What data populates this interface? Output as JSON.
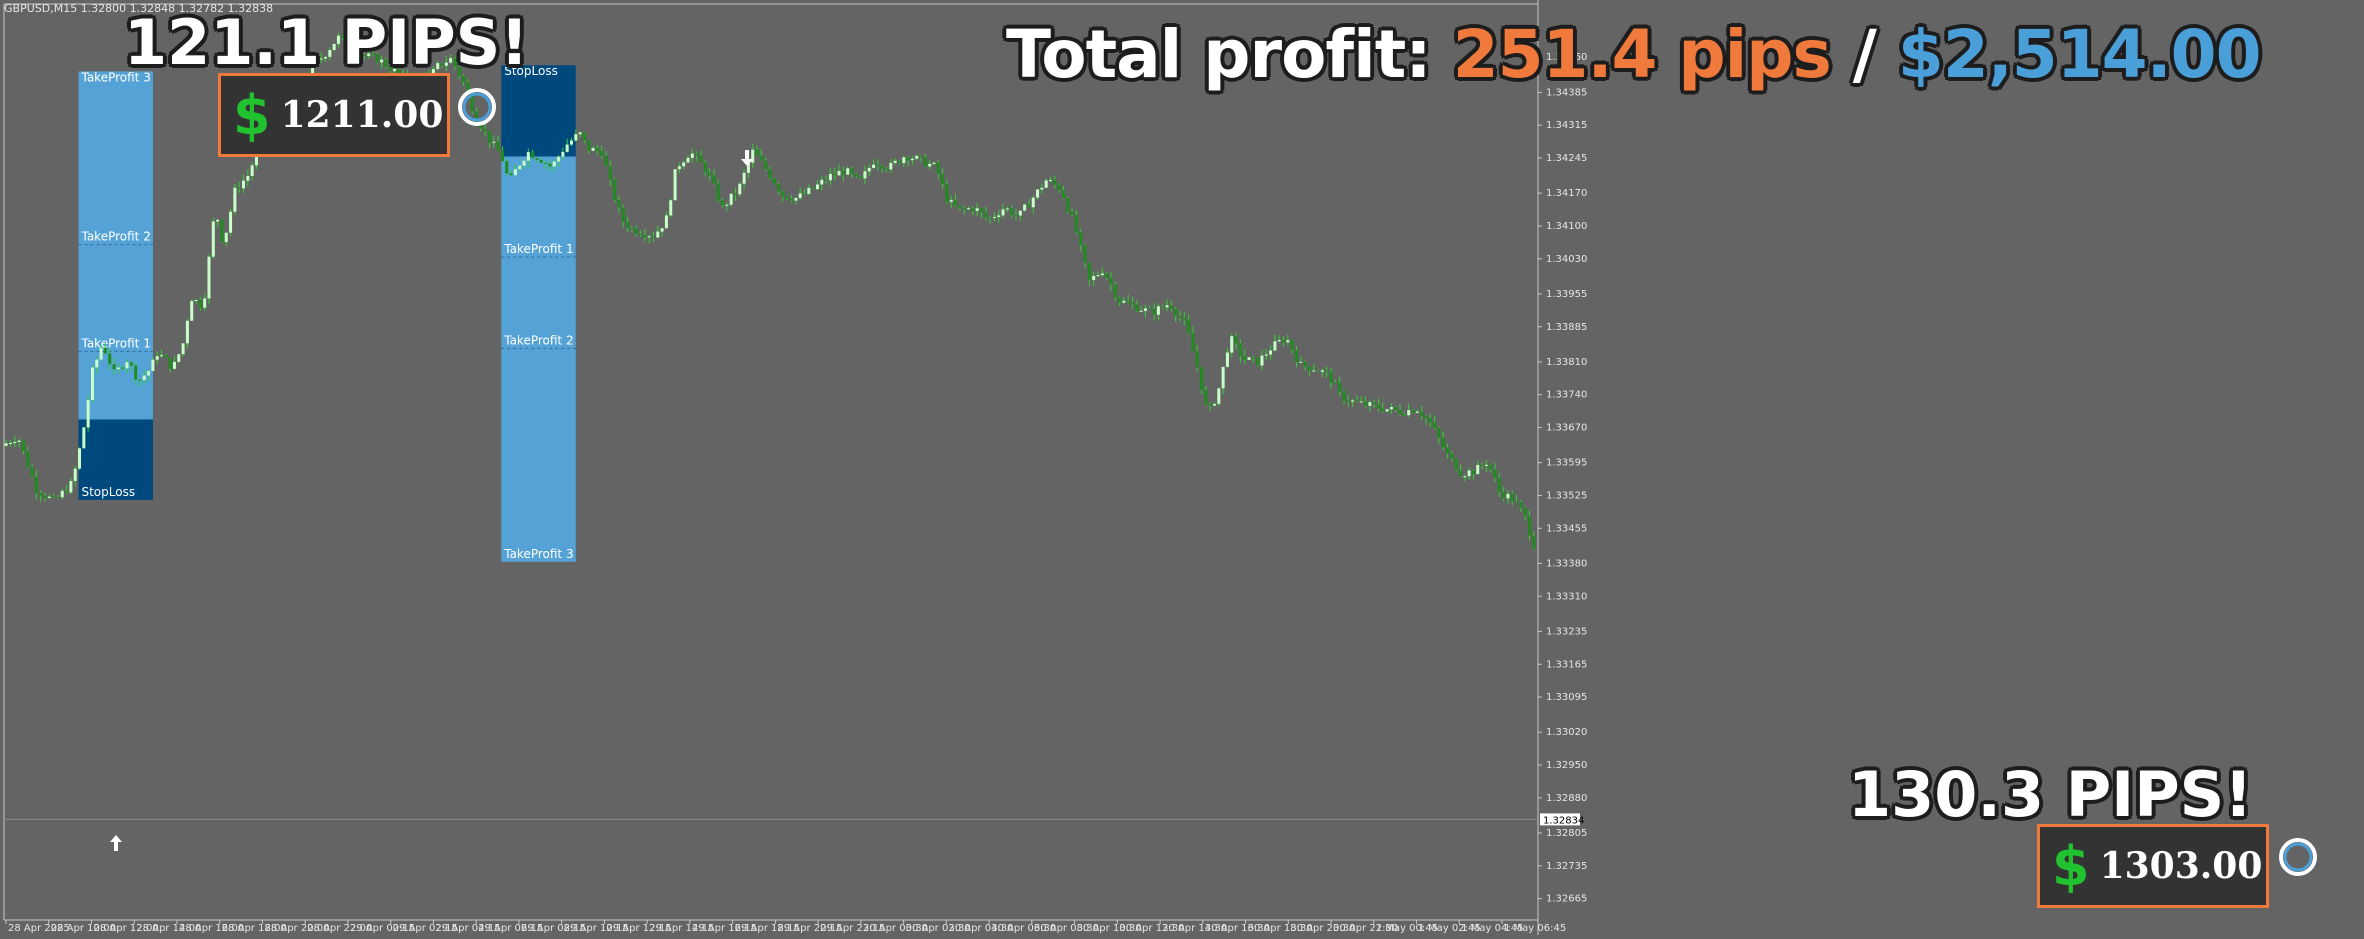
{
  "header_text": "GBPUSD,M15  1.32800 1.32848 1.32782 1.32838",
  "overlay": {
    "total_label": "Total profit: ",
    "total_pips": "251.4 pips",
    "total_sep": " / ",
    "total_usd": "$2,514.00",
    "trade1_pips": "121.1 PIPS!",
    "trade1_dollar_sign": "$",
    "trade1_profit": "1211.00",
    "trade2_pips": "130.3 PIPS!",
    "trade2_dollar_sign": "$",
    "trade2_profit": "1303.00"
  },
  "colors": {
    "background": "#646464",
    "candle_up": "#c8ffc8",
    "candle_down": "#1e8c1e",
    "wick": "#32d032",
    "takeprofit_zone": "#55a3d6",
    "stoploss_zone": "#00497f",
    "accent_orange": "#f07a3c",
    "accent_blue": "#4b9fd8",
    "dollar_green": "#21c22f"
  },
  "icons": [
    "arrow-up-icon",
    "arrow-down-icon",
    "dollar-icon"
  ],
  "chart_data": {
    "type": "candlestick",
    "symbol": "GBPUSD",
    "timeframe": "M15",
    "header_ohlc": {
      "open": 1.328,
      "high": 1.32848,
      "low": 1.32782,
      "close": 1.32838
    },
    "current_price_label": "1.32834",
    "ylim": [
      1.32645,
      1.34565
    ],
    "y_ticks": [
      "1.34460",
      "1.34385",
      "1.34315",
      "1.34245",
      "1.34170",
      "1.34100",
      "1.34030",
      "1.33955",
      "1.33885",
      "1.33810",
      "1.33740",
      "1.33670",
      "1.33595",
      "1.33525",
      "1.33455",
      "1.33380",
      "1.33310",
      "1.33235",
      "1.33165",
      "1.33095",
      "1.33020",
      "1.32950",
      "1.32880",
      "1.32805",
      "1.32735",
      "1.32665"
    ],
    "x_ticks": [
      "28 Apr 2025",
      "28 Apr 10:00",
      "28 Apr 12:00",
      "28 Apr 14:00",
      "28 Apr 16:00",
      "28 Apr 18:00",
      "28 Apr 20:00",
      "28 Apr 22:00",
      "29 Apr 00:15",
      "29 Apr 02:15",
      "29 Apr 04:15",
      "29 Apr 06:15",
      "29 Apr 08:15",
      "29 Apr 10:15",
      "29 Apr 12:15",
      "29 Apr 14:15",
      "29 Apr 16:15",
      "29 Apr 18:15",
      "29 Apr 20:15",
      "29 Apr 22:15",
      "30 Apr 00:30",
      "30 Apr 02:30",
      "30 Apr 04:30",
      "30 Apr 06:30",
      "30 Apr 08:30",
      "30 Apr 10:30",
      "30 Apr 12:30",
      "30 Apr 14:30",
      "30 Apr 16:30",
      "30 Apr 18:30",
      "30 Apr 20:30",
      "30 Apr 22:30",
      "1 May 00:45",
      "1 May 02:45",
      "1 May 04:45",
      "1 May 06:45"
    ],
    "price_path": [
      [
        0,
        1.3315
      ],
      [
        16,
        1.3318
      ],
      [
        34,
        1.3301
      ],
      [
        52,
        1.3297
      ],
      [
        70,
        1.3303
      ],
      [
        80,
        1.3318
      ],
      [
        90,
        1.3339
      ],
      [
        100,
        1.3348
      ],
      [
        112,
        1.3338
      ],
      [
        124,
        1.3343
      ],
      [
        136,
        1.3336
      ],
      [
        148,
        1.334
      ],
      [
        154,
        1.3345
      ],
      [
        162,
        1.3343
      ],
      [
        170,
        1.334
      ],
      [
        180,
        1.3348
      ],
      [
        188,
        1.3363
      ],
      [
        200,
        1.336
      ],
      [
        212,
        1.3392
      ],
      [
        220,
        1.338
      ],
      [
        232,
        1.3398
      ],
      [
        244,
        1.3402
      ],
      [
        256,
        1.3412
      ],
      [
        268,
        1.3418
      ],
      [
        280,
        1.342
      ],
      [
        296,
        1.3427
      ],
      [
        310,
        1.3438
      ],
      [
        322,
        1.3442
      ],
      [
        334,
        1.3447
      ],
      [
        346,
        1.3444
      ],
      [
        360,
        1.3441
      ],
      [
        374,
        1.344
      ],
      [
        390,
        1.3436
      ],
      [
        404,
        1.3433
      ],
      [
        420,
        1.3432
      ],
      [
        434,
        1.3438
      ],
      [
        446,
        1.344
      ],
      [
        458,
        1.3433
      ],
      [
        470,
        1.3422
      ],
      [
        486,
        1.3413
      ],
      [
        496,
        1.3409
      ],
      [
        504,
        1.34
      ],
      [
        512,
        1.3405
      ],
      [
        522,
        1.341
      ],
      [
        534,
        1.3408
      ],
      [
        546,
        1.3405
      ],
      [
        560,
        1.3412
      ],
      [
        574,
        1.3416
      ],
      [
        582,
        1.3411
      ],
      [
        596,
        1.341
      ],
      [
        606,
        1.3398
      ],
      [
        616,
        1.3388
      ],
      [
        626,
        1.3385
      ],
      [
        636,
        1.3384
      ],
      [
        648,
        1.3383
      ],
      [
        660,
        1.3388
      ],
      [
        670,
        1.3405
      ],
      [
        684,
        1.341
      ],
      [
        700,
        1.3404
      ],
      [
        716,
        1.3392
      ],
      [
        732,
        1.3398
      ],
      [
        746,
        1.341
      ],
      [
        760,
        1.3404
      ],
      [
        776,
        1.3396
      ],
      [
        790,
        1.3395
      ],
      [
        806,
        1.3398
      ],
      [
        822,
        1.3402
      ],
      [
        838,
        1.3404
      ],
      [
        852,
        1.34
      ],
      [
        866,
        1.3407
      ],
      [
        882,
        1.3405
      ],
      [
        898,
        1.3409
      ],
      [
        914,
        1.3407
      ],
      [
        928,
        1.3405
      ],
      [
        940,
        1.3394
      ],
      [
        952,
        1.3391
      ],
      [
        966,
        1.3392
      ],
      [
        980,
        1.3388
      ],
      [
        996,
        1.3392
      ],
      [
        1010,
        1.3389
      ],
      [
        1024,
        1.3395
      ],
      [
        1038,
        1.3401
      ],
      [
        1052,
        1.3398
      ],
      [
        1066,
        1.3386
      ],
      [
        1080,
        1.3368
      ],
      [
        1094,
        1.3372
      ],
      [
        1110,
        1.3362
      ],
      [
        1126,
        1.336
      ],
      [
        1142,
        1.3358
      ],
      [
        1160,
        1.3361
      ],
      [
        1176,
        1.3354
      ],
      [
        1188,
        1.334
      ],
      [
        1198,
        1.3325
      ],
      [
        1208,
        1.3332
      ],
      [
        1220,
        1.335
      ],
      [
        1234,
        1.3343
      ],
      [
        1248,
        1.3342
      ],
      [
        1262,
        1.3347
      ],
      [
        1276,
        1.335
      ],
      [
        1290,
        1.3341
      ],
      [
        1304,
        1.334
      ],
      [
        1318,
        1.3338
      ],
      [
        1330,
        1.3331
      ],
      [
        1344,
        1.3329
      ],
      [
        1358,
        1.3328
      ],
      [
        1374,
        1.3327
      ],
      [
        1390,
        1.3326
      ],
      [
        1406,
        1.3327
      ],
      [
        1420,
        1.3322
      ],
      [
        1436,
        1.3312
      ],
      [
        1450,
        1.3306
      ],
      [
        1464,
        1.3307
      ],
      [
        1476,
        1.331
      ],
      [
        1488,
        1.33
      ],
      [
        1500,
        1.3298
      ],
      [
        1512,
        1.3293
      ],
      [
        1522,
        1.3283
      ]
    ],
    "x_range_slots": [
      0,
      1522
    ],
    "trades": [
      {
        "direction": "buy",
        "zone_x_slots": [
          74,
          148
        ],
        "entry": 1.33235,
        "stoploss": 1.32975,
        "takeprofit_1": 1.33455,
        "takeprofit_2": 1.338,
        "takeprofit_3": 1.3436,
        "labels": [
          "TakeProfit 3",
          "TakeProfit 2",
          "TakeProfit 1",
          "StopLoss"
        ]
      },
      {
        "direction": "sell",
        "zone_x_slots": [
          494,
          568
        ],
        "entry": 1.34085,
        "stoploss": 1.3438,
        "takeprofit_1": 1.3376,
        "takeprofit_2": 1.33465,
        "takeprofit_3": 1.32775,
        "labels": [
          "StopLoss",
          "TakeProfit 1",
          "TakeProfit 2",
          "TakeProfit 3"
        ]
      }
    ]
  }
}
